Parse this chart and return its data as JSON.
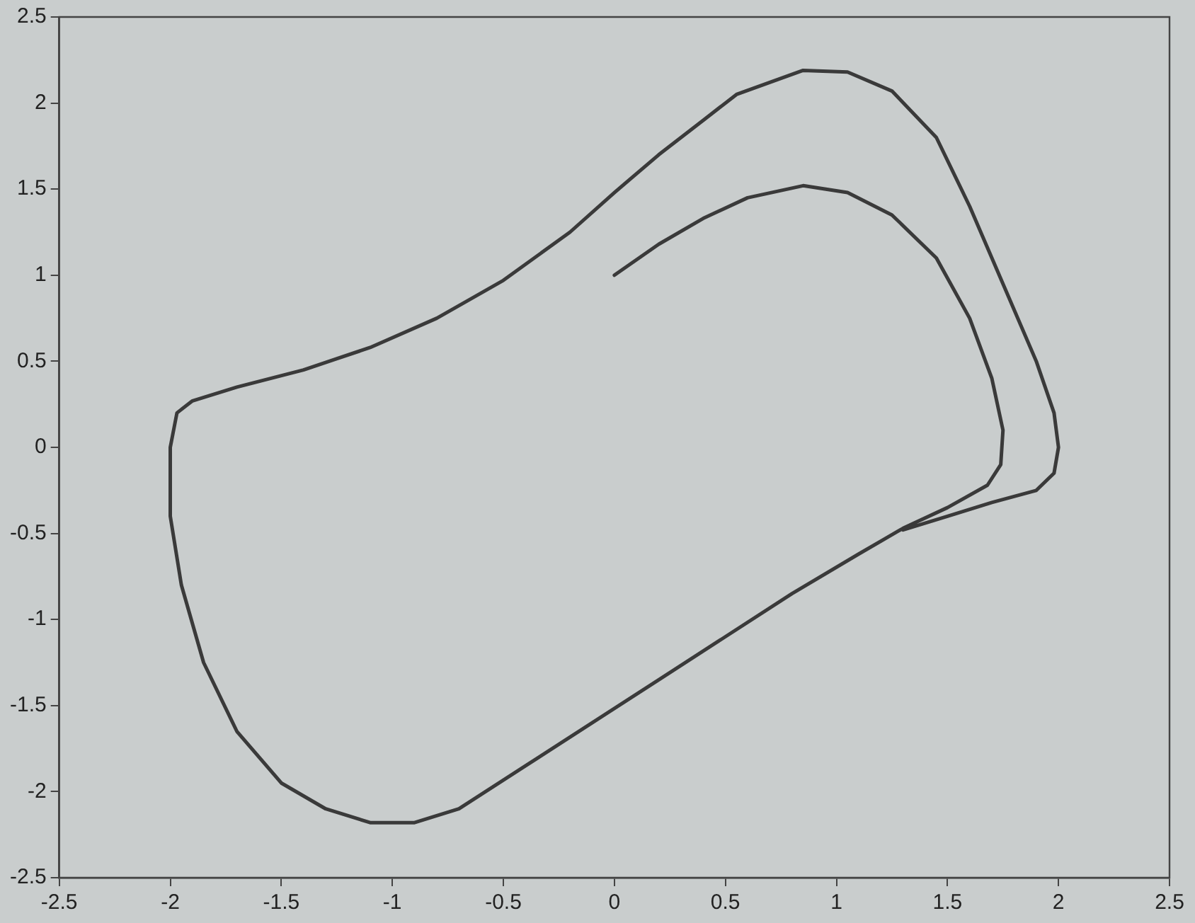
{
  "chart_data": {
    "type": "line",
    "x": [
      0,
      0.2,
      0.4,
      0.6,
      0.85,
      1.05,
      1.25,
      1.45,
      1.6,
      1.7,
      1.75,
      1.74,
      1.68,
      1.5,
      1.3,
      1.1,
      0.8,
      0.5,
      0.2,
      -0.1,
      -0.4,
      -0.7,
      -0.9,
      -1.1,
      -1.3,
      -1.5,
      -1.7,
      -1.85,
      -1.95,
      -2.0,
      -2.0,
      -1.97,
      -1.9,
      -1.7,
      -1.4,
      -1.1,
      -0.8,
      -0.5,
      -0.2,
      0,
      0.2,
      0.4,
      0.55,
      0.85,
      1.05,
      1.25,
      1.45,
      1.6,
      1.75,
      1.9,
      1.98,
      2.0,
      1.98,
      1.9,
      1.7,
      1.5,
      1.3
    ],
    "series": [
      {
        "color": "#3a3a3a",
        "values": [
          1,
          1.18,
          1.33,
          1.45,
          1.52,
          1.48,
          1.35,
          1.1,
          0.75,
          0.4,
          0.1,
          -0.1,
          -0.22,
          -0.35,
          -0.47,
          -0.62,
          -0.85,
          -1.1,
          -1.35,
          -1.6,
          -1.85,
          -2.1,
          -2.18,
          -2.18,
          -2.1,
          -1.95,
          -1.65,
          -1.25,
          -0.8,
          -0.4,
          0,
          0.2,
          0.27,
          0.35,
          0.45,
          0.58,
          0.75,
          0.97,
          1.25,
          1.48,
          1.7,
          1.9,
          2.05,
          2.19,
          2.18,
          2.07,
          1.8,
          1.4,
          0.95,
          0.5,
          0.2,
          0,
          -0.15,
          -0.25,
          -0.32,
          -0.4,
          -0.48
        ]
      }
    ],
    "xlim": [
      -2.5,
      2.5
    ],
    "xticks": [
      -2.5,
      -2,
      -1.5,
      -1,
      -0.5,
      0,
      0.5,
      1,
      1.5,
      2,
      2.5
    ],
    "ylim": [
      -2.5,
      2.5
    ],
    "yticks": [
      -2.5,
      -2,
      -1.5,
      -1,
      -0.5,
      0,
      0.5,
      1,
      1.5,
      2,
      2.5
    ],
    "grid": false,
    "legend": false,
    "marker": "none",
    "line_style": "solid"
  }
}
